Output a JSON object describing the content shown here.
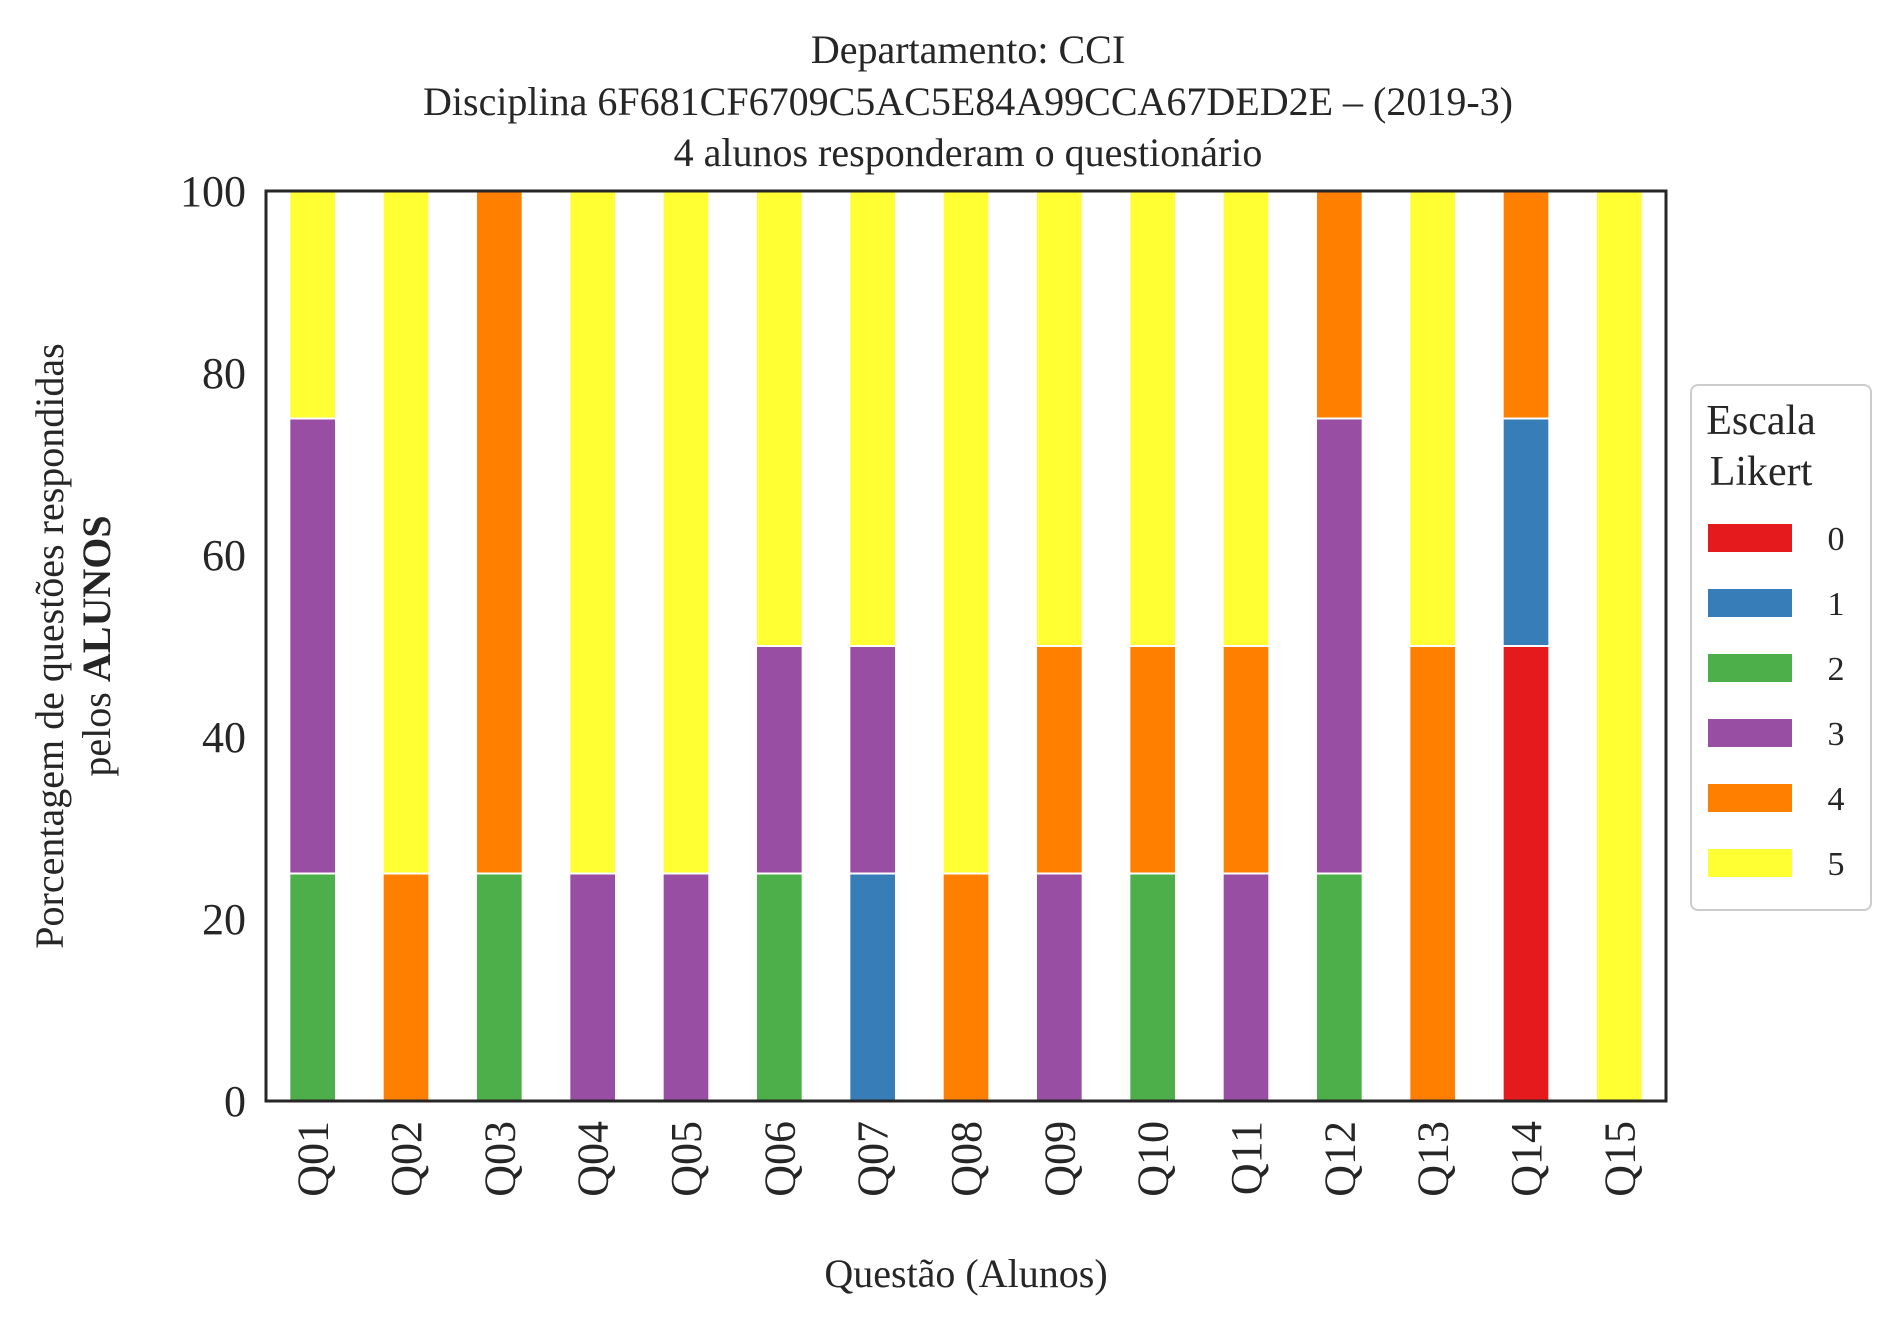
{
  "chart_data": {
    "type": "bar",
    "stacked": true,
    "title_lines": [
      "Departamento: CCI",
      "Disciplina 6F681CF6709C5AC5E84A99CCA67DED2E – (2019-3)",
      "4 alunos responderam o questionário"
    ],
    "xlabel": "Questão (Alunos)",
    "ylabel_line1": "Porcentagem de questões respondidas",
    "ylabel_line2_prefix": "pelos ",
    "ylabel_line2_bold": "ALUNOS",
    "ylim": [
      0,
      100
    ],
    "yticks": [
      "0",
      "20",
      "40",
      "60",
      "80",
      "100"
    ],
    "grid": false,
    "legend": {
      "title_lines": [
        "Escala",
        "Likert"
      ],
      "placement": "right"
    },
    "categories": [
      "Q01",
      "Q02",
      "Q03",
      "Q04",
      "Q05",
      "Q06",
      "Q07",
      "Q08",
      "Q09",
      "Q10",
      "Q11",
      "Q12",
      "Q13",
      "Q14",
      "Q15"
    ],
    "series": [
      {
        "name": "0",
        "color": "#e41a1c",
        "values": [
          0,
          0,
          0,
          0,
          0,
          0,
          0,
          0,
          0,
          0,
          0,
          0,
          0,
          50,
          0
        ]
      },
      {
        "name": "1",
        "color": "#377eb8",
        "values": [
          0,
          0,
          0,
          0,
          0,
          0,
          25,
          0,
          0,
          0,
          0,
          0,
          0,
          25,
          0
        ]
      },
      {
        "name": "2",
        "color": "#4daf4a",
        "values": [
          25,
          0,
          25,
          0,
          0,
          25,
          0,
          0,
          0,
          25,
          0,
          25,
          0,
          0,
          0
        ]
      },
      {
        "name": "3",
        "color": "#984ea3",
        "values": [
          50,
          0,
          0,
          25,
          25,
          25,
          25,
          0,
          25,
          0,
          25,
          50,
          0,
          0,
          0
        ]
      },
      {
        "name": "4",
        "color": "#ff7f00",
        "values": [
          0,
          25,
          75,
          0,
          0,
          0,
          0,
          25,
          25,
          25,
          25,
          25,
          50,
          25,
          0
        ]
      },
      {
        "name": "5",
        "color": "#ffff33",
        "values": [
          25,
          75,
          0,
          75,
          75,
          50,
          50,
          75,
          50,
          50,
          50,
          0,
          50,
          0,
          100
        ]
      }
    ]
  }
}
